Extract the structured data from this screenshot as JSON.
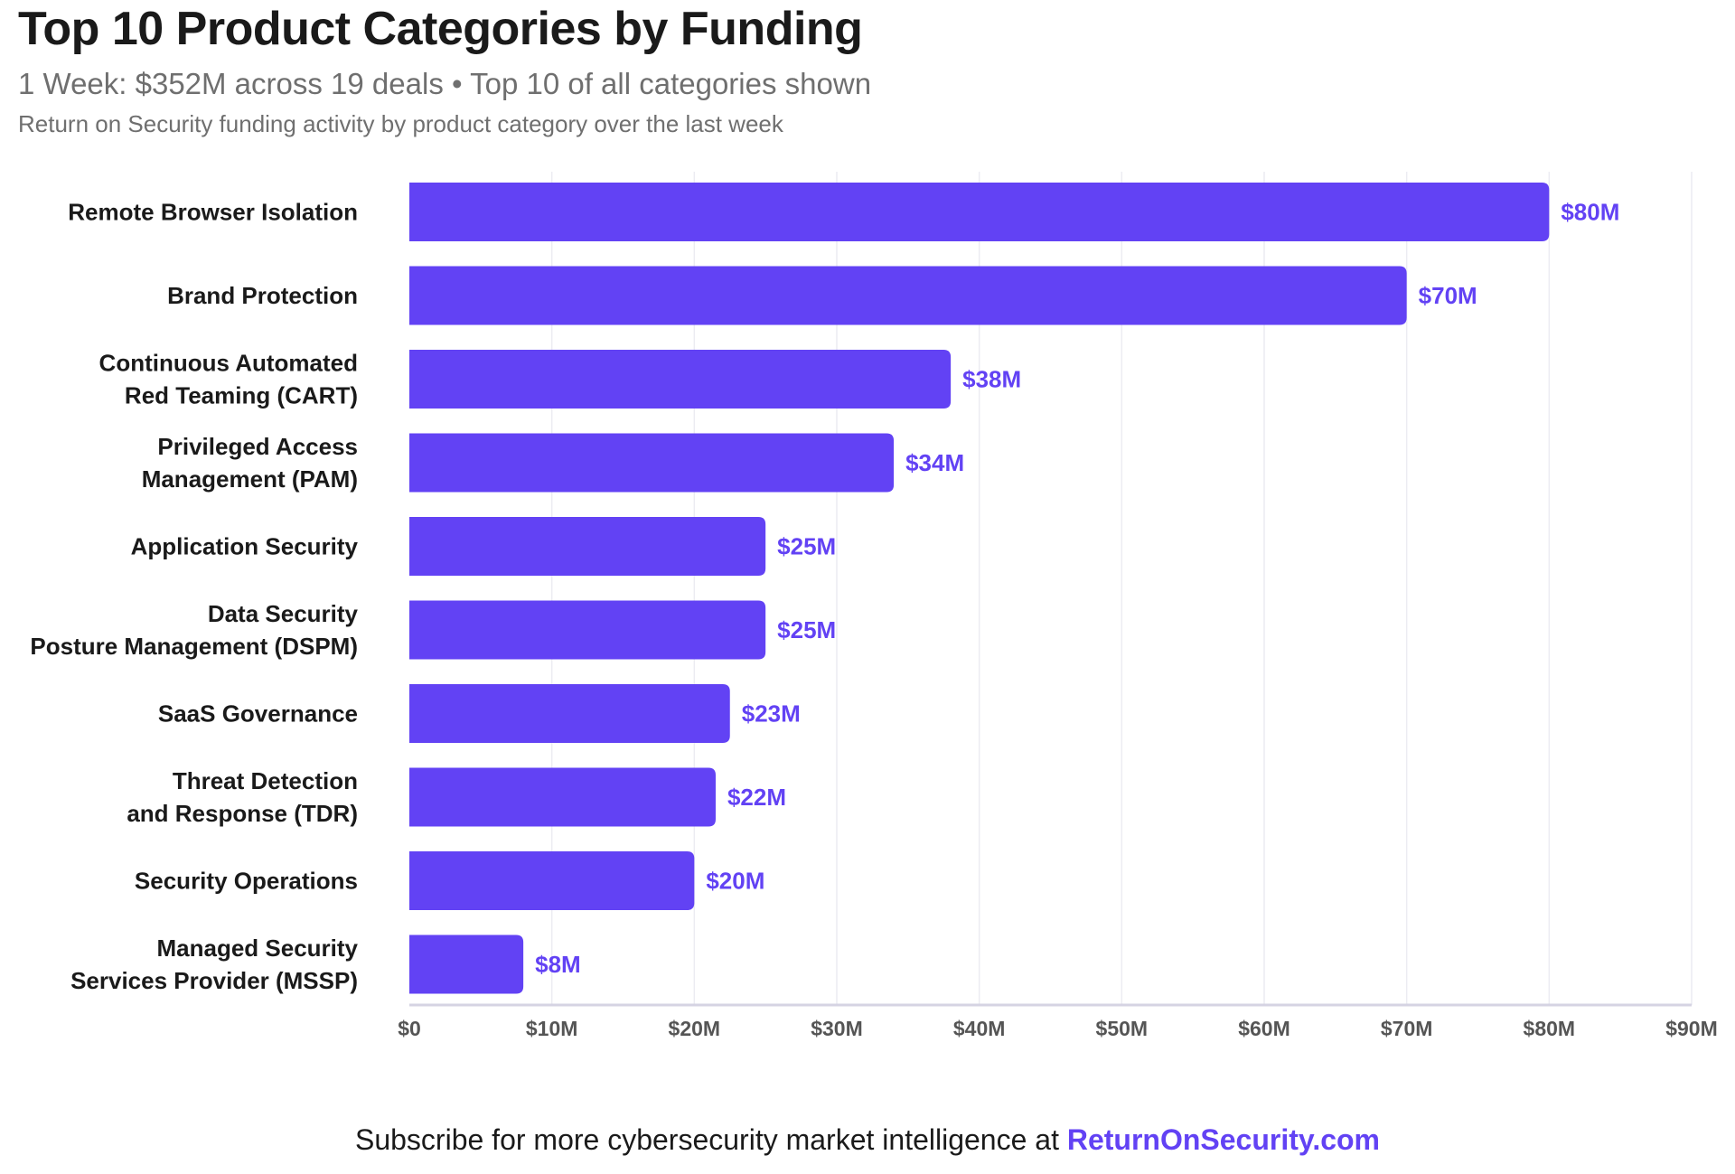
{
  "header": {
    "title": "Top 10 Product Categories by Funding",
    "subtitle": "1 Week: $352M across 19 deals • Top 10 of all categories shown",
    "description": "Return on Security funding activity by product category over the last week"
  },
  "footer": {
    "text": "Subscribe for more cybersecurity market intelligence at ",
    "link": "ReturnOnSecurity.com"
  },
  "colors": {
    "bar": "#6242f4",
    "value_label": "#6242f4",
    "category_label": "#1a1a1a",
    "tick_label": "#555555",
    "grid": "#ececf2",
    "axis": "#d5d3e3"
  },
  "chart_data": {
    "type": "bar",
    "orientation": "horizontal",
    "title": "Top 10 Product Categories by Funding",
    "categories": [
      [
        "Remote Browser Isolation"
      ],
      [
        "Brand Protection"
      ],
      [
        "Continuous Automated",
        "Red Teaming (CART)"
      ],
      [
        "Privileged Access",
        "Management (PAM)"
      ],
      [
        "Application Security"
      ],
      [
        "Data Security",
        "Posture Management (DSPM)"
      ],
      [
        "SaaS Governance"
      ],
      [
        "Threat Detection",
        "and Response (TDR)"
      ],
      [
        "Security Operations"
      ],
      [
        "Managed Security",
        "Services Provider (MSSP)"
      ]
    ],
    "values": [
      80,
      70,
      38,
      34,
      25,
      25,
      22.5,
      21.5,
      20,
      8
    ],
    "value_labels": [
      "$80M",
      "$70M",
      "$38M",
      "$34M",
      "$25M",
      "$25M",
      "$23M",
      "$22M",
      "$20M",
      "$8M"
    ],
    "unit": "$M",
    "xlim": [
      0,
      90
    ],
    "xticks": [
      0,
      10,
      20,
      30,
      40,
      50,
      60,
      70,
      80,
      90
    ],
    "xtick_labels": [
      "$0",
      "$10M",
      "$20M",
      "$30M",
      "$40M",
      "$50M",
      "$60M",
      "$70M",
      "$80M",
      "$90M"
    ],
    "grid": true
  }
}
